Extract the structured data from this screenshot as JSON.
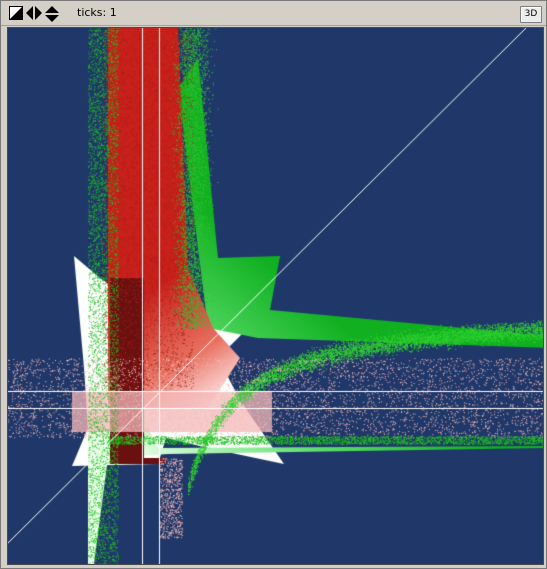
{
  "toolbar": {
    "icons": [
      "toggle-diagonal-icon",
      "pan-horizontal-icon",
      "pan-vertical-icon"
    ],
    "ticks_label": "ticks:",
    "ticks_value": "1",
    "view_3d_label": "3D"
  },
  "plot": {
    "background_color": "#1f3869",
    "guide_color": "#ffffff",
    "series_colors": {
      "red": "#c8201a",
      "green": "#20c020",
      "pink": "#f4b8b8",
      "white": "#ffffff",
      "dark_red": "#6b1010"
    }
  }
}
